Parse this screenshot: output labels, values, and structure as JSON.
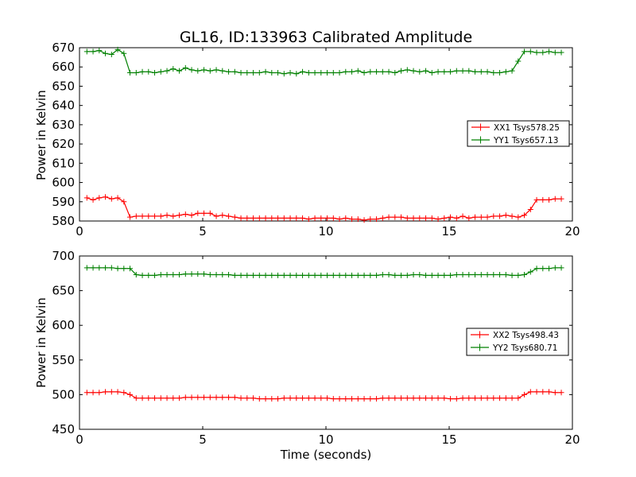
{
  "chart_data": [
    {
      "type": "line",
      "title": "GL16, ID:133963 Calibrated Amplitude",
      "xlabel": "",
      "ylabel": "Power in Kelvin",
      "xlim": [
        0,
        20
      ],
      "ylim": [
        580,
        670
      ],
      "xticks": [
        0,
        5,
        10,
        15,
        20
      ],
      "yticks": [
        580,
        590,
        600,
        610,
        620,
        630,
        640,
        650,
        660,
        670
      ],
      "legend_position": "center-right",
      "x": [
        0.3,
        0.55,
        0.8,
        1.05,
        1.3,
        1.55,
        1.8,
        2.05,
        2.3,
        2.55,
        2.8,
        3.05,
        3.3,
        3.55,
        3.8,
        4.05,
        4.3,
        4.55,
        4.8,
        5.05,
        5.3,
        5.55,
        5.8,
        6.05,
        6.3,
        6.55,
        6.8,
        7.05,
        7.3,
        7.55,
        7.8,
        8.05,
        8.3,
        8.55,
        8.8,
        9.05,
        9.3,
        9.55,
        9.8,
        10.05,
        10.3,
        10.55,
        10.8,
        11.05,
        11.3,
        11.55,
        11.8,
        12.05,
        12.3,
        12.55,
        12.8,
        13.05,
        13.3,
        13.55,
        13.8,
        14.05,
        14.3,
        14.55,
        14.8,
        15.05,
        15.3,
        15.55,
        15.8,
        16.05,
        16.3,
        16.55,
        16.8,
        17.05,
        17.3,
        17.55,
        17.8,
        18.05,
        18.3,
        18.55,
        18.8,
        19.05,
        19.3,
        19.55
      ],
      "series": [
        {
          "name": "XX1 Tsys578.25",
          "color": "#ff0000",
          "values": [
            592,
            591,
            592,
            592.5,
            591.5,
            592,
            590,
            582,
            582.5,
            582.5,
            582.5,
            582.5,
            582.5,
            583,
            582.5,
            583,
            583.5,
            583,
            584,
            584,
            584,
            582.5,
            583,
            582.5,
            582,
            581.5,
            581.5,
            581.5,
            581.5,
            581.5,
            581.5,
            581.5,
            581.5,
            581.5,
            581.5,
            581.5,
            581,
            581.5,
            581.5,
            581.5,
            581.5,
            581,
            581.5,
            581,
            581,
            580.5,
            581,
            581,
            581.5,
            582,
            582,
            582,
            581.5,
            581.5,
            581.5,
            581.5,
            581.5,
            581,
            581.5,
            582,
            581.5,
            582.5,
            581.5,
            582,
            582,
            582,
            582.5,
            582.5,
            583,
            582.5,
            582,
            583,
            586,
            591,
            591,
            591,
            591.5,
            591.5
          ]
        },
        {
          "name": "YY1 Tsys657.13",
          "color": "#008000",
          "values": [
            668,
            668,
            668.5,
            667,
            666.5,
            669,
            667,
            657,
            657,
            657.5,
            657.5,
            657,
            657.5,
            658,
            659,
            658,
            659.5,
            658.5,
            658,
            658.5,
            658,
            658.5,
            658,
            657.5,
            657.5,
            657,
            657,
            657,
            657,
            657.5,
            657,
            657,
            656.5,
            657,
            656.5,
            657.5,
            657,
            657,
            657,
            657,
            657,
            657,
            657.5,
            657.5,
            658,
            657,
            657.5,
            657.5,
            657.5,
            657.5,
            657,
            658,
            658.5,
            658,
            657.5,
            658,
            657,
            657.5,
            657.5,
            657.5,
            658,
            658,
            658,
            657.5,
            657.5,
            657.5,
            657,
            657,
            657.5,
            658,
            663,
            668,
            668,
            667.5,
            667.5,
            668,
            667.5,
            667.5
          ]
        }
      ]
    },
    {
      "type": "line",
      "title": "",
      "xlabel": "Time (seconds)",
      "ylabel": "Power in Kelvin",
      "xlim": [
        0,
        20
      ],
      "ylim": [
        450,
        700
      ],
      "xticks": [
        0,
        5,
        10,
        15,
        20
      ],
      "yticks": [
        450,
        500,
        550,
        600,
        650,
        700
      ],
      "legend_position": "center-right",
      "x": [
        0.3,
        0.55,
        0.8,
        1.05,
        1.3,
        1.55,
        1.8,
        2.05,
        2.3,
        2.55,
        2.8,
        3.05,
        3.3,
        3.55,
        3.8,
        4.05,
        4.3,
        4.55,
        4.8,
        5.05,
        5.3,
        5.55,
        5.8,
        6.05,
        6.3,
        6.55,
        6.8,
        7.05,
        7.3,
        7.55,
        7.8,
        8.05,
        8.3,
        8.55,
        8.8,
        9.05,
        9.3,
        9.55,
        9.8,
        10.05,
        10.3,
        10.55,
        10.8,
        11.05,
        11.3,
        11.55,
        11.8,
        12.05,
        12.3,
        12.55,
        12.8,
        13.05,
        13.3,
        13.55,
        13.8,
        14.05,
        14.3,
        14.55,
        14.8,
        15.05,
        15.3,
        15.55,
        15.8,
        16.05,
        16.3,
        16.55,
        16.8,
        17.05,
        17.3,
        17.55,
        17.8,
        18.05,
        18.3,
        18.55,
        18.8,
        19.05,
        19.3,
        19.55
      ],
      "series": [
        {
          "name": "XX2 Tsys498.43",
          "color": "#ff0000",
          "values": [
            503,
            503,
            503,
            504,
            504,
            504,
            503,
            500,
            495,
            495,
            495,
            495,
            495,
            495,
            495,
            495,
            496,
            496,
            496,
            496,
            496,
            496,
            496,
            496,
            496,
            495,
            495,
            495,
            494,
            494,
            494,
            494,
            495,
            495,
            495,
            495,
            495,
            495,
            495,
            495,
            494,
            494,
            494,
            494,
            494,
            494,
            494,
            494,
            495,
            495,
            495,
            495,
            495,
            495,
            495,
            495,
            495,
            495,
            495,
            494,
            494,
            495,
            495,
            495,
            495,
            495,
            495,
            495,
            495,
            495,
            495,
            500,
            504,
            504,
            504,
            504,
            503,
            503
          ]
        },
        {
          "name": "YY2 Tsys680.71",
          "color": "#008000",
          "values": [
            683,
            683,
            683,
            683,
            683,
            682,
            682,
            682,
            673,
            672,
            672,
            672,
            673,
            673,
            673,
            673,
            674,
            674,
            674,
            674,
            673,
            673,
            673,
            673,
            672,
            672,
            672,
            672,
            672,
            672,
            672,
            672,
            672,
            672,
            672,
            672,
            672,
            672,
            672,
            672,
            672,
            672,
            672,
            672,
            672,
            672,
            672,
            672,
            673,
            673,
            672,
            672,
            672,
            673,
            673,
            672,
            672,
            672,
            672,
            672,
            673,
            673,
            673,
            673,
            673,
            673,
            673,
            673,
            673,
            672,
            672,
            673,
            677,
            682,
            682,
            682,
            683,
            683
          ]
        }
      ]
    }
  ]
}
